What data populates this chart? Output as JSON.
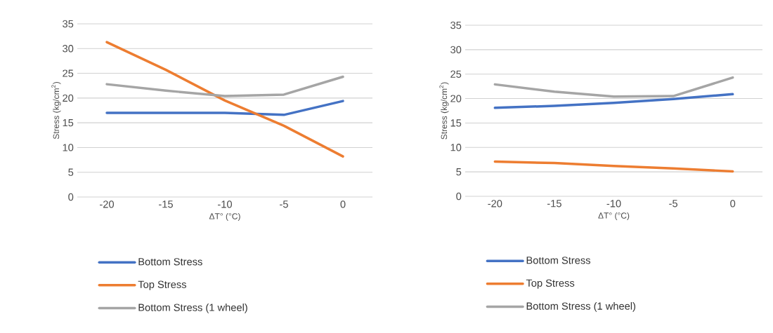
{
  "chart_data": [
    {
      "type": "line",
      "categories": [
        "-20",
        "-15",
        "-10",
        "-5",
        "0"
      ],
      "xlabel": "ΔT° (°C)",
      "ylabel": "Stress (kg/cm$^{2}$)",
      "ylim": [
        0,
        35
      ],
      "yticks": [
        0,
        5,
        10,
        15,
        20,
        25,
        30,
        35
      ],
      "grid": "y",
      "legend": "bottom",
      "series": [
        {
          "name": "Bottom Stress",
          "color": "#4472c4",
          "values": [
            17.0,
            17.0,
            17.0,
            16.6,
            19.4
          ]
        },
        {
          "name": "Top Stress",
          "color": "#ed7d31",
          "values": [
            31.3,
            25.7,
            19.5,
            14.4,
            8.2
          ]
        },
        {
          "name": "Bottom Stress (1 wheel)",
          "color": "#a5a5a5",
          "values": [
            22.8,
            21.5,
            20.4,
            20.7,
            24.3
          ]
        }
      ]
    },
    {
      "type": "line",
      "categories": [
        "-20",
        "-15",
        "-10",
        "-5",
        "0"
      ],
      "xlabel": "ΔT° (°C)",
      "ylabel": "Stress (kg/cm$^{2}$)",
      "ylim": [
        0,
        35
      ],
      "yticks": [
        0,
        5,
        10,
        15,
        20,
        25,
        30,
        35
      ],
      "grid": "y",
      "legend": "bottom",
      "series": [
        {
          "name": "Bottom Stress",
          "color": "#4472c4",
          "values": [
            18.1,
            18.5,
            19.1,
            19.9,
            20.9
          ]
        },
        {
          "name": "Top Stress",
          "color": "#ed7d31",
          "values": [
            7.1,
            6.8,
            6.2,
            5.7,
            5.1
          ]
        },
        {
          "name": "Bottom Stress (1 wheel)",
          "color": "#a5a5a5",
          "values": [
            22.9,
            21.4,
            20.4,
            20.5,
            24.3
          ]
        }
      ]
    }
  ]
}
